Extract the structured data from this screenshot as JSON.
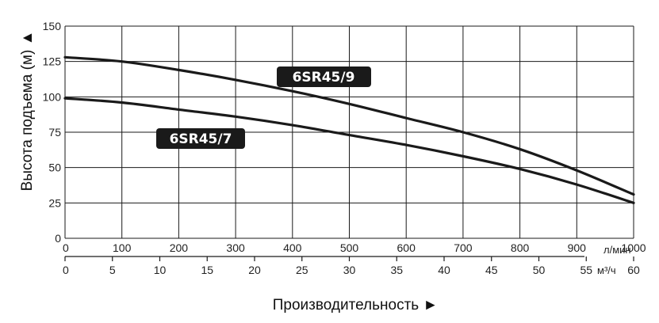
{
  "chart_data": {
    "type": "line",
    "ylabel": "Высота подъема (м) ▲",
    "xlabel": "Производительность ►",
    "x_unit_primary": "л/мин",
    "x_unit_secondary": "м³/ч",
    "xlim": [
      0,
      1000
    ],
    "ylim": [
      0,
      150
    ],
    "x_ticks": [
      "0",
      "100",
      "200",
      "300",
      "400",
      "500",
      "600",
      "700",
      "800",
      "900",
      "1000"
    ],
    "x2_ticks": [
      "0",
      "5",
      "10",
      "15",
      "20",
      "25",
      "30",
      "35",
      "40",
      "45",
      "50",
      "55",
      "60"
    ],
    "y_ticks": [
      "0",
      "25",
      "50",
      "75",
      "100",
      "125",
      "150"
    ],
    "grid": true,
    "series": [
      {
        "name": "6SR45/9",
        "color": "#1a1a1a",
        "x": [
          0,
          100,
          200,
          300,
          400,
          500,
          600,
          700,
          800,
          900,
          1000
        ],
        "y": [
          128,
          125,
          119,
          112,
          104,
          95,
          85,
          75,
          63,
          48,
          31
        ]
      },
      {
        "name": "6SR45/7",
        "color": "#1a1a1a",
        "x": [
          0,
          100,
          200,
          300,
          400,
          500,
          600,
          700,
          800,
          900,
          1000
        ],
        "y": [
          99,
          96,
          91,
          86,
          80,
          73,
          66,
          58,
          49,
          38,
          25
        ]
      }
    ]
  }
}
